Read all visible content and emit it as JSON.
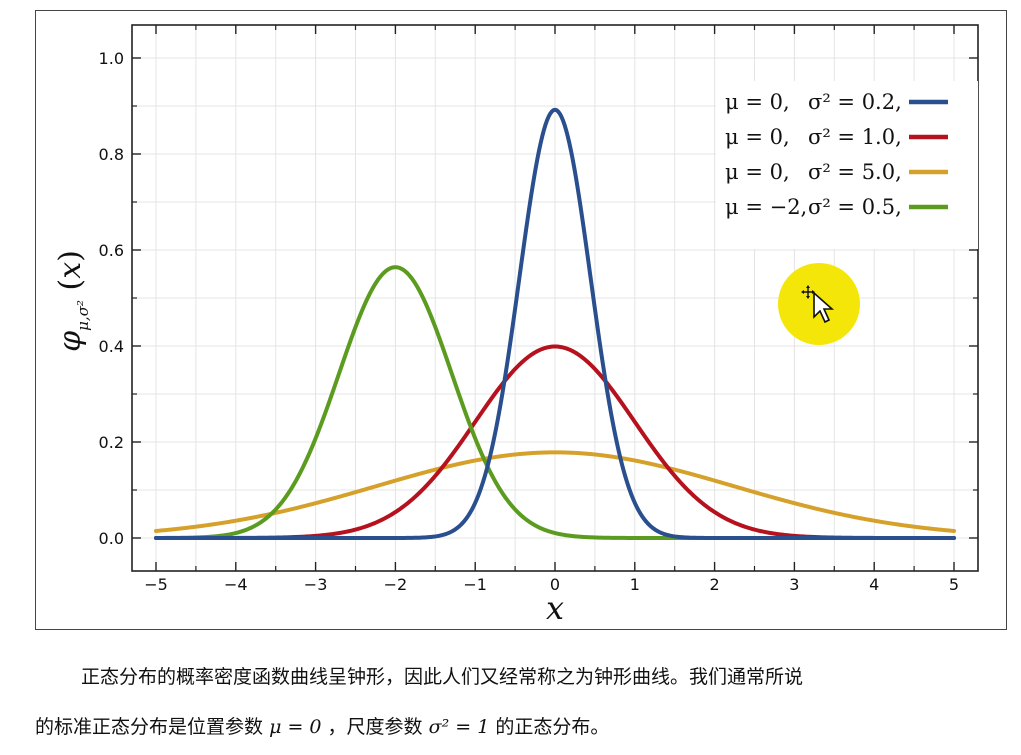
{
  "colors": {
    "blue": "#2a4f8f",
    "red": "#b5121e",
    "orange": "#d6a12a",
    "green": "#5b9b20",
    "cursor_highlight": "#f4e608"
  },
  "chart_data": {
    "type": "line",
    "title": "",
    "xlabel": "x",
    "ylabel": "φ_{μ,σ²}(x)",
    "xlim": [
      -5,
      5
    ],
    "ylim": [
      0,
      1.0
    ],
    "xticks": [
      "−5",
      "−4",
      "−3",
      "−2",
      "−1",
      "0",
      "1",
      "2",
      "3",
      "4",
      "5"
    ],
    "yticks": [
      "0.0",
      "0.2",
      "0.4",
      "0.6",
      "0.8",
      "1.0"
    ],
    "grid": true,
    "legend_position": "top-right",
    "series": [
      {
        "mu_text": "μ = 0,",
        "sigma_text": "σ² = 0.2,",
        "mu": 0,
        "variance": 0.2,
        "color": "#2a4f8f",
        "x": [
          -5,
          -2,
          -1.5,
          -1,
          -0.5,
          0,
          0.5,
          1,
          1.5,
          2,
          5
        ],
        "y": [
          0.0,
          0.0,
          0.003,
          0.073,
          0.479,
          0.892,
          0.479,
          0.073,
          0.003,
          0.0,
          0.0
        ]
      },
      {
        "mu_text": "μ = 0,",
        "sigma_text": "σ² = 1.0,",
        "mu": 0,
        "variance": 1.0,
        "color": "#b5121e",
        "x": [
          -5,
          -4,
          -3,
          -2,
          -1,
          0,
          1,
          2,
          3,
          4,
          5
        ],
        "y": [
          0.0,
          0.0,
          0.004,
          0.054,
          0.242,
          0.399,
          0.242,
          0.054,
          0.004,
          0.0,
          0.0
        ]
      },
      {
        "mu_text": "μ = 0,",
        "sigma_text": "σ² = 5.0,",
        "mu": 0,
        "variance": 5.0,
        "color": "#d6a12a",
        "x": [
          -5,
          -4,
          -3,
          -2,
          -1,
          0,
          1,
          2,
          3,
          4,
          5
        ],
        "y": [
          0.015,
          0.036,
          0.073,
          0.12,
          0.161,
          0.178,
          0.161,
          0.12,
          0.073,
          0.036,
          0.015
        ]
      },
      {
        "mu_text": "μ = −2,",
        "sigma_text": "σ² = 0.5,",
        "mu": -2,
        "variance": 0.5,
        "color": "#5b9b20",
        "x": [
          -5,
          -4,
          -3,
          -2.5,
          -2,
          -1.5,
          -1,
          0,
          1,
          5
        ],
        "y": [
          0.0,
          0.01,
          0.208,
          0.439,
          0.564,
          0.439,
          0.208,
          0.01,
          0.0,
          0.0
        ]
      }
    ]
  },
  "paragraph": {
    "line1": "正态分布的概率密度函数曲线呈钟形，因此人们又经常称之为钟形曲线。我们通常所说",
    "line2_a": "的标准正态分布是位置参数",
    "mu_expr": "μ = 0",
    "line2_b": "，尺度参数",
    "sigma_expr": "σ² = 1",
    "line2_c": "的正态分布。"
  }
}
